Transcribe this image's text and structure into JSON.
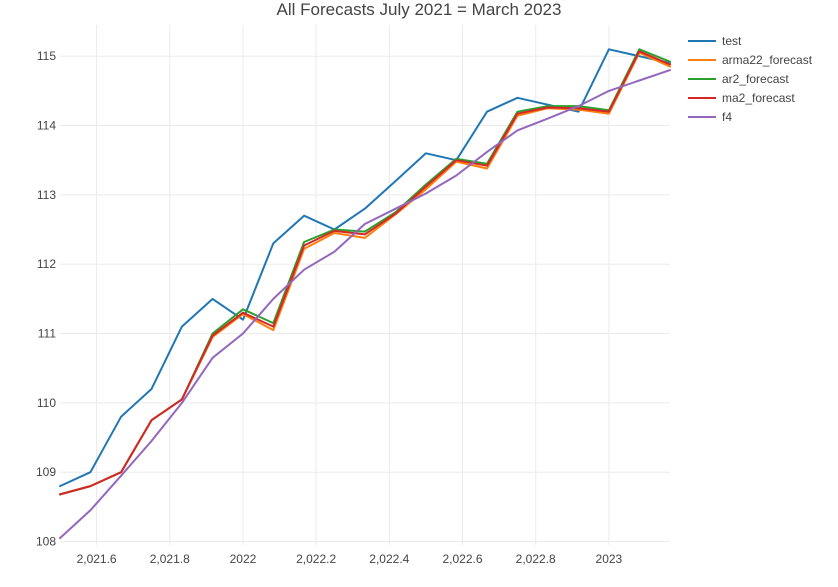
{
  "chart_data": {
    "type": "line",
    "title": "All Forecasts July 2021 = March 2023",
    "xlabel": "",
    "ylabel": "",
    "xlim": [
      2021.5,
      2023.167
    ],
    "ylim": [
      107.95,
      115.45
    ],
    "x_ticks": [
      {
        "value": 2021.6,
        "label": "2,021.6"
      },
      {
        "value": 2021.8,
        "label": "2,021.8"
      },
      {
        "value": 2022.0,
        "label": "2022"
      },
      {
        "value": 2022.2,
        "label": "2,022.2"
      },
      {
        "value": 2022.4,
        "label": "2,022.4"
      },
      {
        "value": 2022.6,
        "label": "2,022.6"
      },
      {
        "value": 2022.8,
        "label": "2,022.8"
      },
      {
        "value": 2023.0,
        "label": "2023"
      }
    ],
    "y_ticks": [
      {
        "value": 108,
        "label": "108"
      },
      {
        "value": 109,
        "label": "109"
      },
      {
        "value": 110,
        "label": "110"
      },
      {
        "value": 111,
        "label": "111"
      },
      {
        "value": 112,
        "label": "112"
      },
      {
        "value": 113,
        "label": "113"
      },
      {
        "value": 114,
        "label": "114"
      },
      {
        "value": 115,
        "label": "115"
      }
    ],
    "grid": true,
    "legend_position": "top-right",
    "x": [
      2021.5,
      2021.583,
      2021.667,
      2021.75,
      2021.833,
      2021.917,
      2022.0,
      2022.083,
      2022.167,
      2022.25,
      2022.333,
      2022.417,
      2022.5,
      2022.583,
      2022.667,
      2022.75,
      2022.833,
      2022.917,
      2023.0,
      2023.083,
      2023.167
    ],
    "series": [
      {
        "name": "test",
        "color": "#1f77b4",
        "values": [
          108.8,
          109.0,
          109.8,
          110.2,
          111.1,
          111.5,
          111.2,
          112.3,
          112.7,
          112.5,
          112.8,
          113.2,
          113.6,
          113.5,
          114.2,
          114.4,
          114.3,
          114.2,
          115.1,
          115.0,
          114.9
        ]
      },
      {
        "name": "arma22_forecast",
        "color": "#ff7f0e",
        "values": [
          108.68,
          108.8,
          109.0,
          109.75,
          110.05,
          110.95,
          111.28,
          111.05,
          112.22,
          112.45,
          112.38,
          112.72,
          113.08,
          113.48,
          113.38,
          114.14,
          114.25,
          114.23,
          114.17,
          115.05,
          114.85
        ]
      },
      {
        "name": "ar2_forecast",
        "color": "#2ca02c",
        "values": [
          108.68,
          108.8,
          109.0,
          109.75,
          110.05,
          111.0,
          111.35,
          111.15,
          112.32,
          112.5,
          112.47,
          112.75,
          113.15,
          113.52,
          113.45,
          114.2,
          114.28,
          114.28,
          114.22,
          115.1,
          114.92
        ]
      },
      {
        "name": "ma2_forecast",
        "color": "#d62728",
        "values": [
          108.68,
          108.8,
          109.0,
          109.75,
          110.05,
          110.97,
          111.3,
          111.1,
          112.27,
          112.48,
          112.43,
          112.73,
          113.12,
          113.5,
          113.42,
          114.17,
          114.26,
          114.25,
          114.2,
          115.07,
          114.88
        ]
      },
      {
        "name": "f4",
        "color": "#9467bd",
        "values": [
          108.05,
          108.45,
          108.95,
          109.45,
          110.0,
          110.65,
          111.0,
          111.5,
          111.92,
          112.18,
          112.58,
          112.8,
          113.02,
          113.28,
          113.62,
          113.93,
          114.1,
          114.28,
          114.5,
          114.65,
          114.8
        ]
      }
    ]
  }
}
